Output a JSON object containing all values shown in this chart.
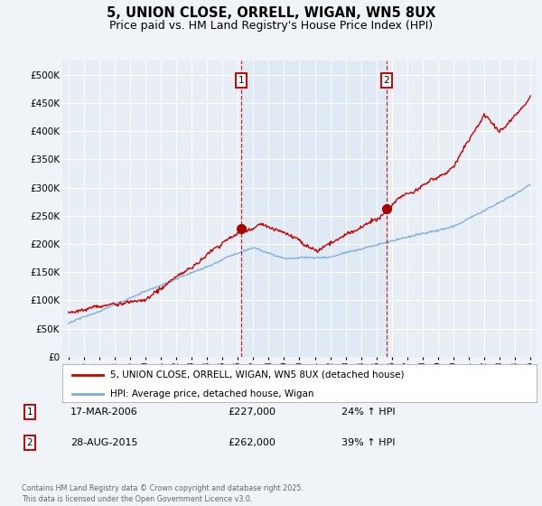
{
  "title": "5, UNION CLOSE, ORRELL, WIGAN, WN5 8UX",
  "subtitle": "Price paid vs. HM Land Registry's House Price Index (HPI)",
  "title_fontsize": 10.5,
  "subtitle_fontsize": 9,
  "background_color": "#f0f4f8",
  "plot_bg_color": "#e8eef5",
  "highlight_bg": "#dce8f5",
  "ylim": [
    0,
    525000
  ],
  "yticks": [
    0,
    50000,
    100000,
    150000,
    200000,
    250000,
    300000,
    350000,
    400000,
    450000,
    500000
  ],
  "year_start": 1995,
  "year_end": 2025,
  "vline1_year": 2006.2,
  "vline2_year": 2015.65,
  "sale1": {
    "date": "17-MAR-2006",
    "price": 227000,
    "hpi_change": "24% ↑ HPI",
    "label": "1"
  },
  "sale2": {
    "date": "28-AUG-2015",
    "price": 262000,
    "hpi_change": "39% ↑ HPI",
    "label": "2"
  },
  "legend_line1": "5, UNION CLOSE, ORRELL, WIGAN, WN5 8UX (detached house)",
  "legend_line2": "HPI: Average price, detached house, Wigan",
  "footer": "Contains HM Land Registry data © Crown copyright and database right 2025.\nThis data is licensed under the Open Government Licence v3.0.",
  "red_color": "#cc0000",
  "blue_color": "#7aaadd",
  "marker_fill": "#aa0000"
}
